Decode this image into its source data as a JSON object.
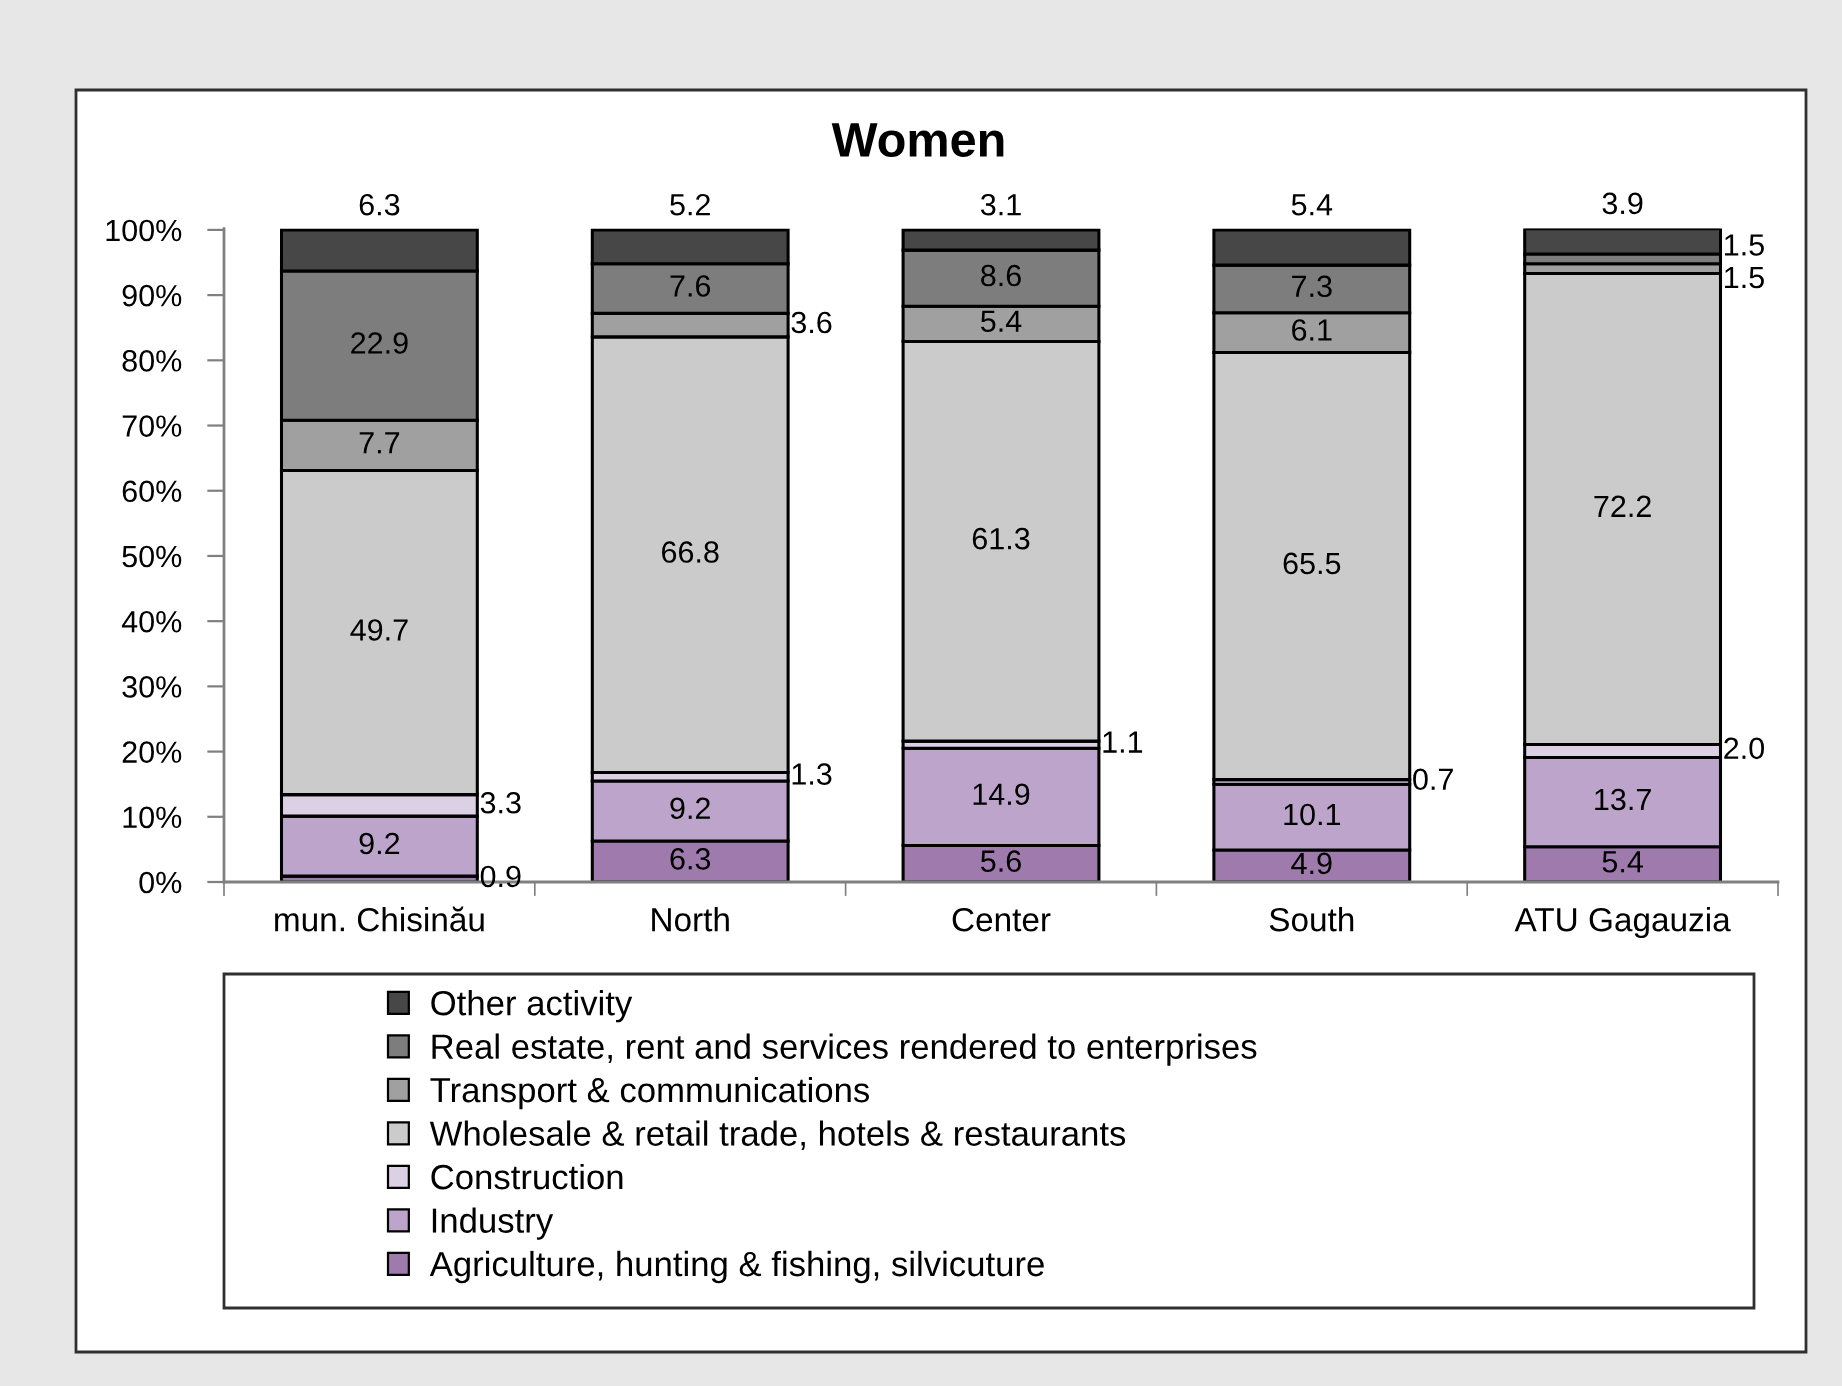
{
  "chart_data": {
    "type": "bar",
    "title": "Women",
    "stacked": true,
    "legend": "bottom",
    "grid": false,
    "categories": [
      "mun. Chisinău",
      "North",
      "Center",
      "South",
      "ATU Gagauzia"
    ],
    "series": [
      {
        "name": "Agriculture, hunting & fishing, silvicuture",
        "color": "#9f7aad",
        "values": [
          0.9,
          6.3,
          5.6,
          4.9,
          5.4
        ],
        "value_labels": [
          "0.9",
          "6.3",
          "5.6",
          "4.9",
          "5.4"
        ]
      },
      {
        "name": "Industry",
        "color": "#bca4ca",
        "values": [
          9.2,
          9.2,
          14.9,
          10.1,
          13.7
        ],
        "value_labels": [
          "9.2",
          "9.2",
          "14.9",
          "10.1",
          "13.7"
        ]
      },
      {
        "name": "Construction",
        "color": "#dcd0e4",
        "values": [
          3.3,
          1.3,
          1.1,
          0.7,
          2.0
        ],
        "value_labels": [
          "3.3",
          "1.3",
          "1.1",
          "0.7",
          "2.0"
        ]
      },
      {
        "name": "Wholesale & retail trade, hotels & restaurants",
        "color": "#cbcbcb",
        "values": [
          49.7,
          66.8,
          61.3,
          65.5,
          72.2
        ],
        "value_labels": [
          "49.7",
          "66.8",
          "61.3",
          "65.5",
          "72.2"
        ]
      },
      {
        "name": "Transport & communications",
        "color": "#a0a0a0",
        "values": [
          7.7,
          3.6,
          5.4,
          6.1,
          1.5
        ],
        "value_labels": [
          "7.7",
          "3.6",
          "5.4",
          "6.1",
          "1.5"
        ]
      },
      {
        "name": "Real estate, rent and services rendered to enterprises",
        "color": "#7d7d7d",
        "values": [
          22.9,
          7.6,
          8.6,
          7.3,
          1.5
        ],
        "value_labels": [
          "22.9",
          "7.6",
          "8.6",
          "7.3",
          "1.5"
        ]
      },
      {
        "name": "Other activity",
        "color": "#474747",
        "values": [
          6.3,
          5.2,
          3.1,
          5.4,
          3.9
        ],
        "value_labels": [
          "6.3",
          "5.2",
          "3.1",
          "5.4",
          "3.9"
        ]
      }
    ],
    "ylim": [
      0,
      100.2
    ],
    "yticks": [
      {
        "value": 0,
        "label": "0%"
      },
      {
        "value": 10,
        "label": "10%"
      },
      {
        "value": 20,
        "label": "20%"
      },
      {
        "value": 30,
        "label": "30%"
      },
      {
        "value": 40,
        "label": "40%"
      },
      {
        "value": 50,
        "label": "50%"
      },
      {
        "value": 60,
        "label": "60%"
      },
      {
        "value": 70,
        "label": "70%"
      },
      {
        "value": 80,
        "label": "80%"
      },
      {
        "value": 90,
        "label": "90%"
      },
      {
        "value": 100,
        "label": "100%"
      }
    ]
  }
}
